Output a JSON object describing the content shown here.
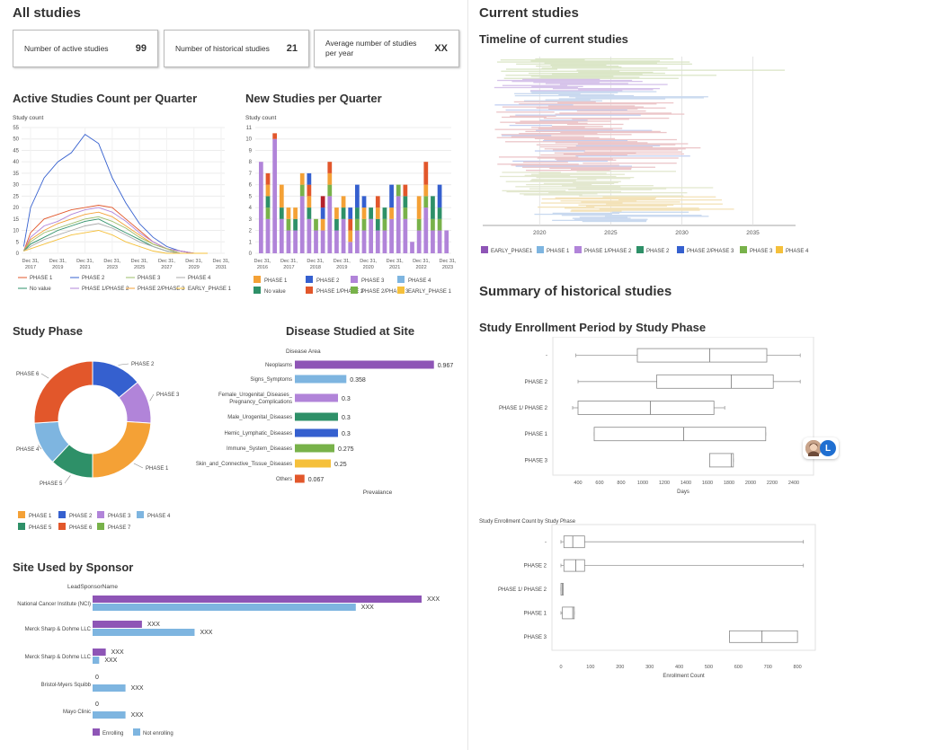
{
  "left_title": "All studies",
  "right_title": "Current studies",
  "kpis": [
    {
      "label": "Number of active studies",
      "value": "99"
    },
    {
      "label": "Number of historical studies",
      "value": "21"
    },
    {
      "label": "Average number of studies per year",
      "value": "XX"
    }
  ],
  "timeline_title": "Timeline of current studies",
  "historical_title": "Summary of historical studies",
  "colors": {
    "phase1_light": "#7eb5e0",
    "early_phase1": "#8e55b6",
    "phase12": "#b184d9",
    "phase2": "#2e9068",
    "phase23": "#3560cf",
    "phase3": "#78b24a",
    "phase4": "#f5c03b",
    "orange": "#f4a136",
    "red": "#e2572b",
    "dark_red": "#b5202b"
  },
  "chart_data": [
    {
      "id": "active_quarter",
      "type": "line",
      "title": "Active Studies Count per Quarter",
      "ylabel": "Study count",
      "xlabel": "",
      "ylim": [
        0,
        55
      ],
      "yticks": [
        0,
        5,
        10,
        15,
        20,
        25,
        30,
        35,
        40,
        45,
        50,
        55
      ],
      "x_ticks": [
        "Dec 31, 2017",
        "Dec 31, 2019",
        "Dec 31, 2021",
        "Dec 31, 2023",
        "Dec 31, 2025",
        "Dec 31, 2027",
        "Dec 31, 2029",
        "Dec 31, 2031"
      ],
      "x": [
        2016.5,
        2017,
        2018,
        2019,
        2020,
        2021,
        2022,
        2023,
        2024,
        2025,
        2026,
        2027,
        2028,
        2029,
        2030
      ],
      "legend": [
        "PHASE 1",
        "PHASE 2",
        "PHASE 3",
        "PHASE 4",
        "No value",
        "PHASE 1/PHASE 2",
        "PHASE 2/PHASE 3",
        "EARLY_PHASE 1"
      ],
      "series": [
        {
          "name": "PHASE 2",
          "color": "#3560cf",
          "values": [
            3,
            20,
            33,
            40,
            44,
            52,
            48,
            33,
            22,
            13,
            7,
            3,
            1,
            0,
            0
          ]
        },
        {
          "name": "PHASE 1",
          "color": "#e2572b",
          "values": [
            1,
            9,
            15,
            17,
            19,
            20,
            21,
            20,
            15,
            10,
            5,
            2,
            1,
            0,
            0
          ]
        },
        {
          "name": "PHASE 1/PHASE 2",
          "color": "#b184d9",
          "values": [
            1,
            7,
            12,
            14,
            17,
            19,
            20,
            18,
            14,
            9,
            5,
            2,
            1,
            0,
            0
          ]
        },
        {
          "name": "PHASE 2/PHASE 3",
          "color": "#f4a136",
          "values": [
            1,
            6,
            10,
            13,
            15,
            17,
            18,
            16,
            12,
            8,
            4,
            2,
            0,
            0,
            0
          ]
        },
        {
          "name": "PHASE 3",
          "color": "#9bbd6a",
          "values": [
            1,
            5,
            9,
            11,
            13,
            15,
            16,
            14,
            11,
            7,
            4,
            2,
            0,
            0,
            0
          ]
        },
        {
          "name": "No value",
          "color": "#2e9068",
          "values": [
            1,
            4,
            7,
            10,
            12,
            14,
            15,
            12,
            9,
            6,
            3,
            1,
            0,
            0,
            0
          ]
        },
        {
          "name": "PHASE 4",
          "color": "#aaaaaa",
          "values": [
            1,
            3,
            6,
            8,
            10,
            12,
            13,
            11,
            8,
            5,
            3,
            1,
            0,
            0,
            0
          ]
        },
        {
          "name": "EARLY_PHASE 1",
          "color": "#f5c03b",
          "values": [
            1,
            2,
            4,
            6,
            8,
            9,
            10,
            8,
            5,
            3,
            1,
            0,
            0,
            0,
            0
          ]
        }
      ]
    },
    {
      "id": "new_quarter",
      "type": "bar",
      "title": "New Studies per Quarter",
      "ylabel": "Study count",
      "ylim": [
        0,
        11
      ],
      "yticks": [
        0,
        1,
        2,
        3,
        4,
        5,
        6,
        7,
        8,
        9,
        10,
        11
      ],
      "x_ticks": [
        "Dec 31, 2016",
        "Dec 31, 2017",
        "Dec 31, 2018",
        "Dec 31, 2019",
        "Dec 31, 2020",
        "Dec 31, 2021",
        "Dec 31, 2022",
        "Dec 31, 2023"
      ],
      "legend": [
        "PHASE 1",
        "PHASE 2",
        "PHASE 3",
        "PHASE 4",
        "No value",
        "PHASE 1/PHASE 2",
        "PHASE 2/PHASE 3",
        "EARLY_PHASE 1"
      ],
      "series": [
        {
          "name": "PHASE 3",
          "color": "#b184d9",
          "values": [
            8,
            3,
            10,
            3,
            2,
            2,
            5,
            3,
            2,
            2,
            5,
            2,
            3,
            1,
            2,
            2,
            3,
            2,
            2,
            3,
            5,
            3,
            1,
            2,
            4,
            2,
            2,
            2
          ]
        },
        {
          "name": "PHASE 2/PHASE 3",
          "color": "#78b24a",
          "values": [
            0,
            1,
            0,
            0,
            1,
            0,
            1,
            0,
            1,
            0,
            1,
            0,
            0,
            0,
            1,
            1,
            0,
            0,
            1,
            0,
            1,
            1,
            0,
            1,
            1,
            1,
            1,
            0
          ]
        },
        {
          "name": "No value",
          "color": "#2e9068",
          "values": [
            0,
            1,
            0,
            1,
            0,
            1,
            0,
            1,
            0,
            0,
            0,
            1,
            1,
            0,
            1,
            0,
            1,
            1,
            1,
            0,
            0,
            1,
            0,
            0,
            0,
            2,
            1,
            0
          ]
        },
        {
          "name": "PHASE 1",
          "color": "#f4a136",
          "values": [
            0,
            1,
            0,
            2,
            1,
            1,
            1,
            1,
            0,
            1,
            1,
            1,
            1,
            1,
            0,
            1,
            0,
            1,
            0,
            1,
            0,
            0,
            0,
            2,
            1,
            0,
            0,
            0
          ]
        },
        {
          "name": "PHASE 1/PHASE 2",
          "color": "#e2572b",
          "values": [
            0,
            1,
            0.5,
            0,
            0,
            0,
            0,
            1,
            0,
            0,
            1,
            0,
            0,
            1,
            0,
            0,
            0,
            1,
            0,
            0,
            0,
            1,
            0,
            0,
            2,
            0,
            0,
            0
          ]
        },
        {
          "name": "PHASE 2",
          "color": "#3560cf",
          "values": [
            0,
            0,
            0,
            0,
            0,
            0,
            0,
            1,
            0,
            1,
            0,
            0,
            0,
            1,
            2,
            1,
            0,
            0,
            0,
            2,
            0,
            0,
            0,
            0,
            0,
            0,
            2,
            0
          ]
        },
        {
          "name": "PHASE 4",
          "color": "#b5202b",
          "values": [
            0,
            0,
            0,
            0,
            0,
            0,
            0,
            0,
            0,
            1,
            0,
            0,
            0,
            0,
            0,
            0,
            0,
            0,
            0,
            0,
            0,
            0,
            0,
            0,
            0,
            0,
            0,
            0
          ]
        }
      ]
    },
    {
      "id": "study_phase",
      "type": "pie",
      "title": "Study Phase",
      "legend": [
        "PHASE 1",
        "PHASE 2",
        "PHASE 3",
        "PHASE 4",
        "PHASE 5",
        "PHASE 6",
        "PHASE 7"
      ],
      "slices": [
        {
          "label": "PHASE 2",
          "value": 14,
          "color": "#3560cf"
        },
        {
          "label": "PHASE 3",
          "value": 12,
          "color": "#b184d9"
        },
        {
          "label": "PHASE 1",
          "value": 24,
          "color": "#f4a136"
        },
        {
          "label": "PHASE 5",
          "value": 12,
          "color": "#2e9068"
        },
        {
          "label": "PHASE 4",
          "value": 12,
          "color": "#7eb5e0"
        },
        {
          "label": "PHASE 6",
          "value": 26,
          "color": "#e2572b"
        }
      ]
    },
    {
      "id": "disease",
      "type": "bar",
      "orientation": "horizontal",
      "title": "Disease Studied at Site",
      "ylabel": "Disease Area",
      "xlabel": "Prevalance",
      "xlim": [
        0,
        1
      ],
      "categories": [
        "Neoplasms",
        "Signs_Symptoms",
        "Female_Urogenital_Diseases_ Pregnancy_Complications",
        "Male_Urogenital_Diseases",
        "Hemic_Lymphatic_Diseases",
        "Immune_System_Diseases",
        "Skin_and_Connective_Tissue_Diseases",
        "Others"
      ],
      "values": [
        0.967,
        0.358,
        0.3,
        0.3,
        0.3,
        0.275,
        0.25,
        0.067
      ],
      "colors": [
        "#8e55b6",
        "#7eb5e0",
        "#b184d9",
        "#2e9068",
        "#3560cf",
        "#78b24a",
        "#f5c03b",
        "#e2572b"
      ]
    },
    {
      "id": "sponsor",
      "type": "bar",
      "orientation": "horizontal",
      "title": "Site Used by Sponsor",
      "ylabel": "LeadSponsorName",
      "categories": [
        "National Cancer Institute (NCI)",
        "Merck Sharp & Dohme LLC",
        "Merck Sharp & Dohme LLC",
        "Bristol-Myers Squibb",
        "Mayo Clinic"
      ],
      "series": [
        {
          "name": "Enrolling",
          "color": "#8e55b6",
          "values": [
            100,
            15,
            4,
            0,
            0
          ],
          "labels": [
            "XXX",
            "XXX",
            "XXX",
            "0",
            "0"
          ]
        },
        {
          "name": "Not enrolling",
          "color": "#7eb5e0",
          "values": [
            80,
            31,
            2,
            10,
            10
          ],
          "labels": [
            "XXX",
            "XXX",
            "XXX",
            "XXX",
            "XXX"
          ]
        }
      ]
    },
    {
      "id": "timeline",
      "type": "bar",
      "orientation": "horizontal",
      "title": "Timeline of current studies",
      "xlim": [
        2016,
        2038
      ],
      "x_ticks": [
        "2020",
        "2025",
        "2030",
        "2035"
      ],
      "legend": [
        "EARLY_PHASE1",
        "PHASE 1",
        "PHASE 1/PHASE 2",
        "PHASE 2",
        "PHASE 2/PHASE 3",
        "PHASE 3",
        "PHASE 4"
      ],
      "legend_colors": [
        "#8e55b6",
        "#7eb5e0",
        "#b184d9",
        "#2e9068",
        "#3560cf",
        "#78b24a",
        "#f5c03b"
      ]
    },
    {
      "id": "enroll_period",
      "type": "box",
      "title": "Study Enrollment Period by Study Phase",
      "xlabel": "Days",
      "xlim": [
        250,
        2500
      ],
      "x_ticks": [
        400,
        600,
        800,
        1000,
        1200,
        1400,
        1600,
        1800,
        2000,
        2200,
        2400
      ],
      "categories": [
        "-",
        "PHASE 2",
        "PHASE 1/ PHASE 2",
        "PHASE 1",
        "PHASE 3"
      ],
      "boxes": [
        {
          "min": 380,
          "q1": 950,
          "median": 1620,
          "q3": 2150,
          "max": 2460
        },
        {
          "min": 400,
          "q1": 1130,
          "median": 1820,
          "q3": 2210,
          "max": 2460
        },
        {
          "min": 350,
          "q1": 400,
          "median": 1070,
          "q3": 1660,
          "max": 1760
        },
        {
          "min": 550,
          "q1": 550,
          "median": 1380,
          "q3": 2140,
          "max": 2140
        },
        {
          "min": 1620,
          "q1": 1620,
          "median": 1820,
          "q3": 1840,
          "max": 1840
        }
      ]
    },
    {
      "id": "enroll_count",
      "type": "box",
      "title": "Study Enrollment Count by Study Phase",
      "xlabel": "Enrollment Count",
      "xlim": [
        0,
        830
      ],
      "x_ticks": [
        0,
        100,
        200,
        300,
        400,
        500,
        600,
        700,
        800
      ],
      "categories": [
        "-",
        "PHASE 2",
        "PHASE 1/ PHASE 2",
        "PHASE 1",
        "PHASE 3"
      ],
      "boxes": [
        {
          "min": 0,
          "q1": 10,
          "median": 40,
          "q3": 80,
          "max": 820
        },
        {
          "min": 0,
          "q1": 10,
          "median": 50,
          "q3": 80,
          "max": 820
        },
        {
          "min": 0,
          "q1": 0,
          "median": 5,
          "q3": 8,
          "max": 8
        },
        {
          "min": 0,
          "q1": 5,
          "median": 40,
          "q3": 45,
          "max": 45
        },
        {
          "min": 570,
          "q1": 570,
          "median": 680,
          "q3": 800,
          "max": 800
        }
      ]
    }
  ],
  "avatar_letter": "L"
}
